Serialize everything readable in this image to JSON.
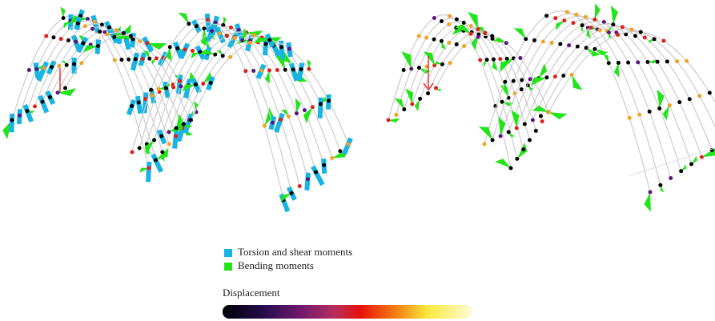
{
  "legend": {
    "items": [
      {
        "label": "Torsion and shear moments",
        "color": "#19b4e3"
      },
      {
        "label": "Bending moments",
        "color": "#22e41b"
      }
    ]
  },
  "colorbar": {
    "label": "Displacement"
  }
}
